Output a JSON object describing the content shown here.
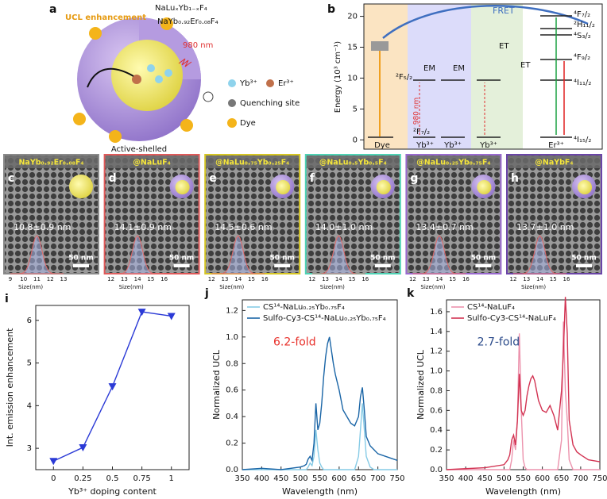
{
  "panel_a": {
    "label": "a",
    "title": "UCL enhancement",
    "shell_label": "NaLuₓYb₁₋ₓF₄",
    "core_label": "NaYb₀.₉₂Er₀.₀₈F₄",
    "excitation": "980 nm",
    "caption": "Active-shelled",
    "legend": [
      "Yb³⁺",
      "Er³⁺",
      "Quenching site",
      "Dye"
    ]
  },
  "panel_b": {
    "label": "b",
    "ylabel": "Energy (10³ cm⁻¹)",
    "ylim": [
      -1.5,
      22
    ],
    "yticks": [
      0,
      5,
      10,
      15,
      20
    ],
    "species": [
      "Dye",
      "Yb³⁺",
      "Yb³⁺",
      "Yb³⁺",
      "Er³⁺"
    ],
    "transfers": [
      "FRET",
      "EM",
      "EM",
      "ET",
      "ET",
      "980 nm"
    ],
    "yb_levels": [
      "²F₅/₂",
      "²F₇/₂"
    ],
    "er_levels": [
      "⁴F₇/₂",
      "²H₁₁/₂",
      "⁴S₃/₂",
      "⁴F₉/₂",
      "⁴I₁₁/₂",
      "⁴I₁₅/₂"
    ]
  },
  "micrographs": [
    {
      "label": "c",
      "title": "NaYb₀.₉₂Er₀.₀₈F₄",
      "color": "#8a8a8a",
      "size": "10.8±0.9 nm",
      "scale": "50 nm",
      "ticks": [
        9,
        10,
        11,
        12,
        13
      ],
      "axis": "Size(nm)"
    },
    {
      "label": "d",
      "title": "@NaLuF₄",
      "color": "#e05a5a",
      "size": "14.1±0.9 nm",
      "scale": "50 nm",
      "ticks": [
        12,
        13,
        14,
        15,
        16
      ],
      "axis": "Size(nm)"
    },
    {
      "label": "e",
      "title": "@NaLu₀.₇₅Yb₀.₂₅F₄",
      "color": "#d6c623",
      "size": "14.5±0.6 nm",
      "scale": "50 nm",
      "ticks": [
        12,
        13,
        14,
        15,
        16
      ],
      "axis": "Size(nm)"
    },
    {
      "label": "f",
      "title": "@NaLu₀.₅Yb₀.₅F₄",
      "color": "#4fd3b5",
      "size": "14.0±1.0 nm",
      "scale": "50 nm",
      "ticks": [
        12,
        13,
        14,
        15,
        16
      ],
      "axis": "Size(nm)"
    },
    {
      "label": "g",
      "title": "@NaLu₀.₂₅Yb₀.₇₅F₄",
      "color": "#9a6ad0",
      "size": "13.4±0.7 nm",
      "scale": "50 nm",
      "ticks": [
        12,
        13,
        14,
        15,
        16
      ],
      "axis": "Size(nm)"
    },
    {
      "label": "h",
      "title": "@NaYbF₄",
      "color": "#6b45a8",
      "size": "13.7±1.0 nm",
      "scale": "50 nm",
      "ticks": [
        12,
        13,
        14,
        15,
        16
      ],
      "axis": "Size(nm)"
    }
  ],
  "chart_data": [
    {
      "type": "line",
      "label": "i",
      "xlabel": "Yb³⁺ doping content",
      "ylabel": "Int. emission enhancement",
      "x": [
        0,
        0.25,
        0.5,
        0.75,
        1
      ],
      "xlim": [
        -0.15,
        1.15
      ],
      "xticks": [
        0,
        0.25,
        0.5,
        0.75,
        1
      ],
      "ylim": [
        2.5,
        6.35
      ],
      "yticks": [
        3,
        4,
        5,
        6
      ],
      "markers": "triangle-down",
      "series": [
        {
          "color": "#2b3ad6",
          "values": [
            2.7,
            3.02,
            4.45,
            6.2,
            6.1
          ]
        }
      ]
    },
    {
      "type": "line",
      "label": "j",
      "xlabel": "Wavelength (nm)",
      "ylabel": "Normalized UCL",
      "annotation": "6.2-fold",
      "annotation_color": "#e8302a",
      "legend": "upper left",
      "x": [
        350,
        400,
        450,
        500,
        510,
        515,
        520,
        525,
        530,
        535,
        540,
        545,
        550,
        555,
        560,
        565,
        570,
        575,
        580,
        585,
        590,
        600,
        610,
        620,
        630,
        640,
        650,
        655,
        660,
        665,
        670,
        680,
        690,
        700,
        720,
        750
      ],
      "xlim": [
        350,
        750
      ],
      "xticks": [
        350,
        400,
        450,
        500,
        550,
        600,
        650,
        700,
        750
      ],
      "ylim": [
        0,
        1.28
      ],
      "yticks": [
        {
          "value": 0,
          "label": "0.0"
        },
        0.2,
        0.4,
        0.6,
        0.8,
        {
          "value": 1,
          "label": "1.0"
        },
        1.2
      ],
      "series": [
        {
          "name": "CS¹⁴-NaLu₀.₂₅Yb₀.₇₅F₄",
          "color": "#86cbe6",
          "values": [
            0,
            0,
            0,
            0,
            0,
            0,
            0.02,
            0.05,
            0.03,
            0.1,
            0.3,
            0.15,
            0.05,
            0.02,
            0,
            0,
            0,
            0,
            0,
            0,
            0,
            0,
            0,
            0,
            0,
            0,
            0.1,
            0.3,
            0.5,
            0.3,
            0.1,
            0.02,
            0,
            0,
            0,
            0
          ]
        },
        {
          "name": "Sulfo-Cy3-CS¹⁴-NaLu₀.₂₅Yb₀.₇₅F₄",
          "color": "#1a65a6",
          "values": [
            0,
            0.01,
            0,
            0.02,
            0.03,
            0.04,
            0.08,
            0.1,
            0.07,
            0.2,
            0.5,
            0.3,
            0.35,
            0.5,
            0.7,
            0.85,
            0.95,
            1.0,
            0.9,
            0.8,
            0.72,
            0.6,
            0.45,
            0.4,
            0.35,
            0.33,
            0.4,
            0.55,
            0.62,
            0.45,
            0.25,
            0.18,
            0.15,
            0.12,
            0.1,
            0.07
          ]
        }
      ]
    },
    {
      "type": "line",
      "label": "k",
      "xlabel": "Wavelength (nm)",
      "ylabel": "Normalized UCL",
      "annotation": "2.7-fold",
      "annotation_color": "#2a4a8a",
      "legend": "upper left",
      "x": [
        350,
        400,
        450,
        500,
        510,
        515,
        520,
        525,
        530,
        535,
        540,
        545,
        550,
        555,
        560,
        565,
        570,
        575,
        580,
        585,
        590,
        600,
        610,
        620,
        630,
        640,
        650,
        655,
        660,
        665,
        670,
        680,
        690,
        700,
        720,
        750
      ],
      "xlim": [
        350,
        750
      ],
      "xticks": [
        350,
        400,
        450,
        500,
        550,
        600,
        650,
        700,
        750
      ],
      "ylim": [
        0,
        1.72
      ],
      "yticks": [
        {
          "value": 0,
          "label": "0.0"
        },
        0.2,
        0.4,
        0.6,
        0.8,
        {
          "value": 1,
          "label": "1.0"
        },
        1.2,
        1.4,
        1.6
      ],
      "series": [
        {
          "name": "CS¹⁴-NaLuF₄",
          "color": "#ec93ad",
          "values": [
            0,
            0,
            0,
            0,
            0,
            0,
            0.1,
            0.3,
            0.2,
            0.5,
            1.38,
            0.6,
            0.1,
            0.02,
            0,
            0,
            0,
            0,
            0,
            0,
            0,
            0,
            0,
            0,
            0,
            0,
            0.3,
            1.5,
            0.8,
            0.5,
            0.1,
            0,
            0,
            0,
            0,
            0
          ]
        },
        {
          "name": "Sulfo-Cy3-CS¹⁴-NaLuF₄",
          "color": "#d23352",
          "values": [
            0,
            0.01,
            0.02,
            0.05,
            0.1,
            0.15,
            0.3,
            0.35,
            0.25,
            0.5,
            0.97,
            0.6,
            0.55,
            0.6,
            0.75,
            0.85,
            0.92,
            0.95,
            0.9,
            0.8,
            0.7,
            0.6,
            0.58,
            0.65,
            0.55,
            0.4,
            0.8,
            1.2,
            1.75,
            1.38,
            0.5,
            0.25,
            0.18,
            0.15,
            0.1,
            0.08
          ]
        }
      ]
    }
  ]
}
